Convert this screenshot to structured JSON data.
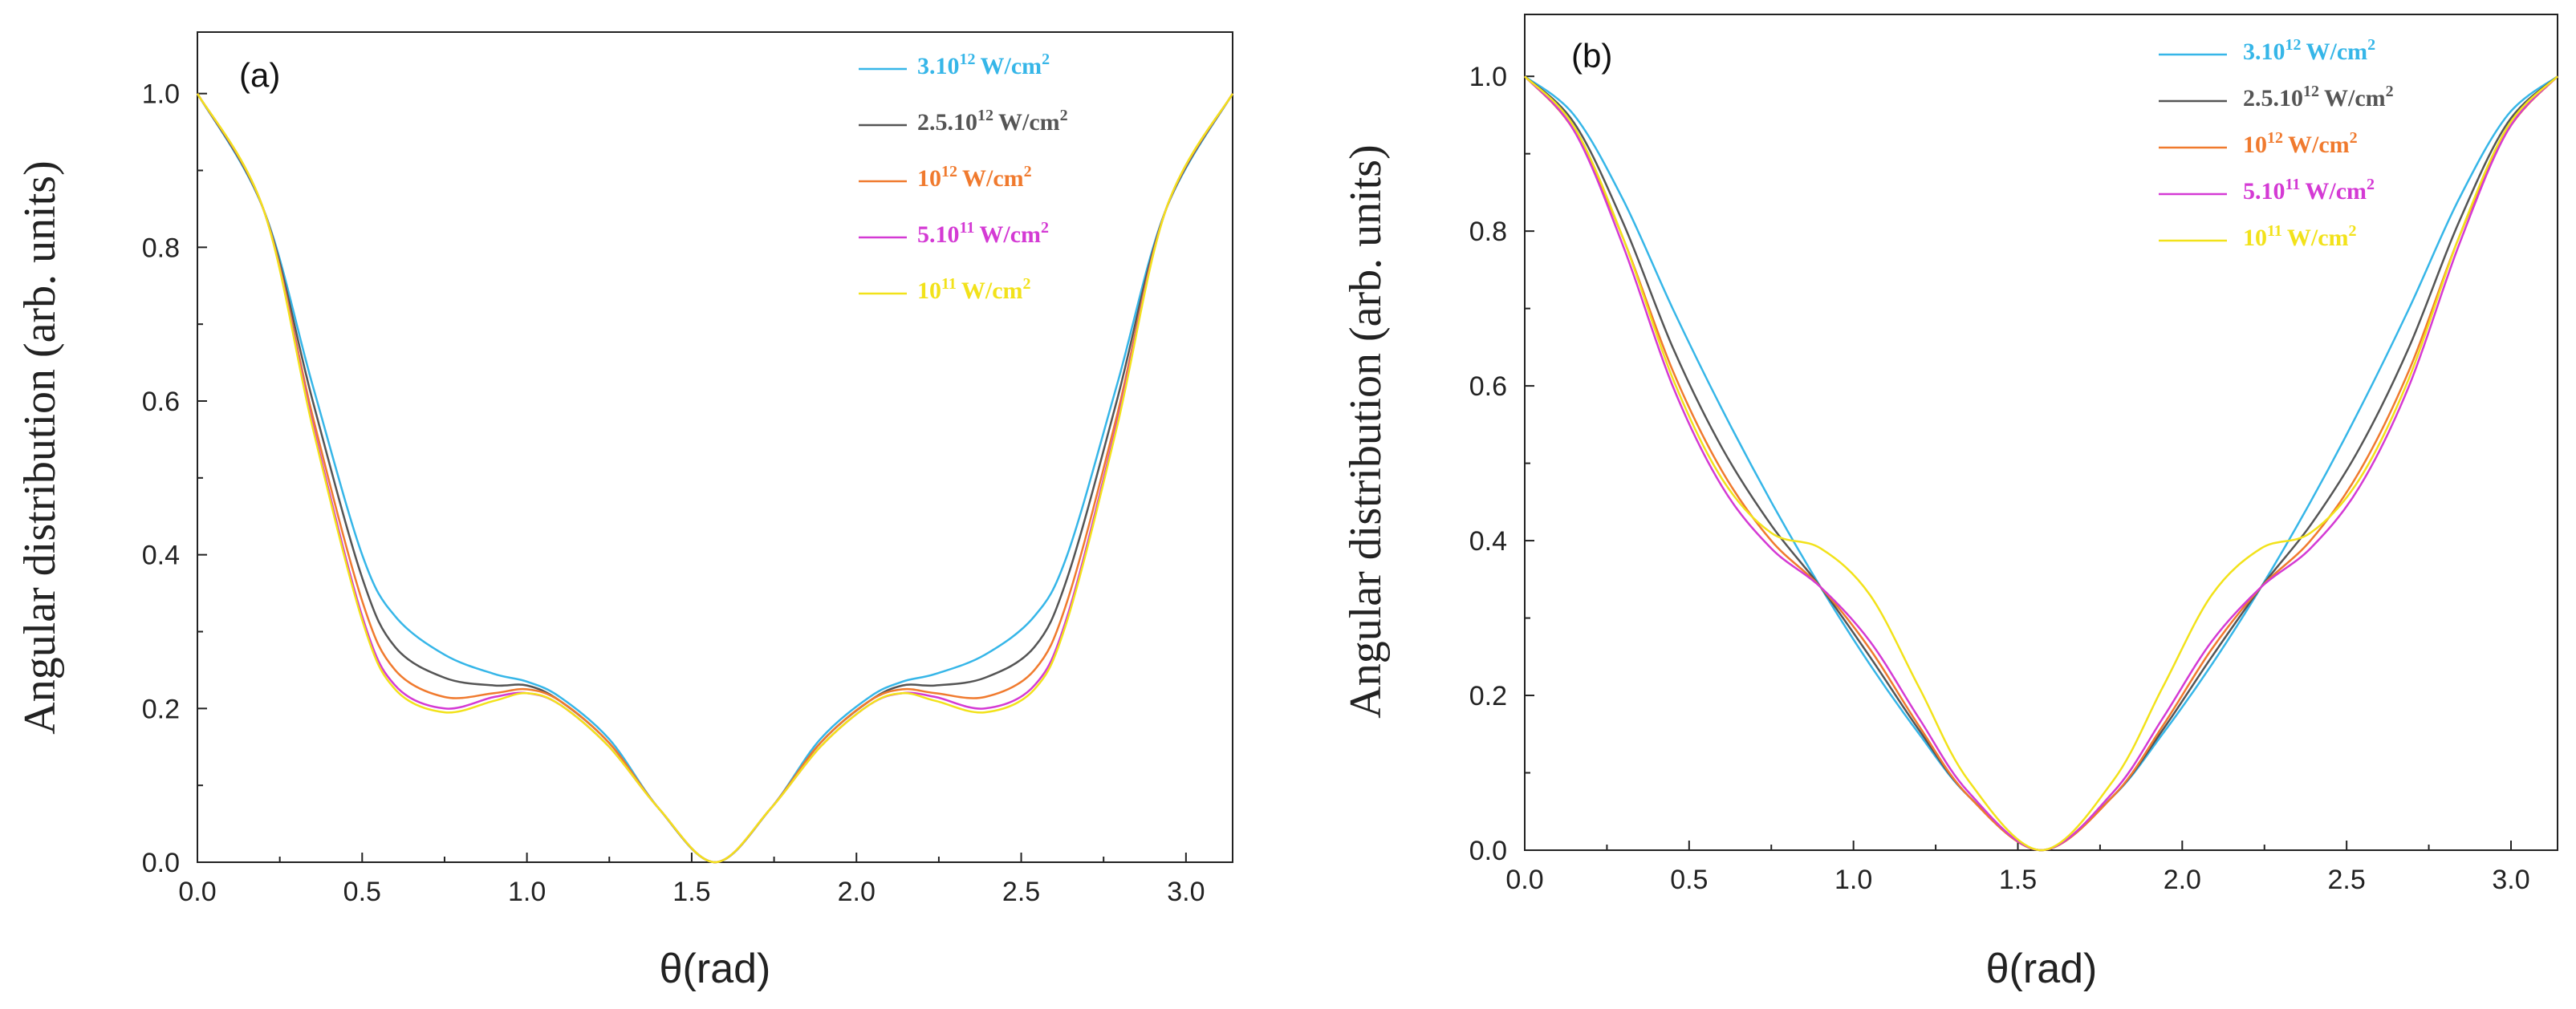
{
  "chart_data": [
    {
      "type": "line",
      "panel_label": "(a)",
      "xlabel": "θ(rad)",
      "ylabel": "Angular distribution (arb. units)",
      "xlim": [
        0.0,
        3.1416
      ],
      "ylim": [
        0.0,
        1.08
      ],
      "xticks": [
        "0.0",
        "0.5",
        "1.0",
        "1.5",
        "2.0",
        "2.5",
        "3.0"
      ],
      "yticks": [
        "0.0",
        "0.2",
        "0.4",
        "0.6",
        "0.8",
        "1.0"
      ],
      "legend_position": "top-right",
      "series": [
        {
          "name": "3.10",
          "sup": "12",
          "unit": "W/cm",
          "unit_sup": "2",
          "color": "#36b6e8",
          "x": [
            0,
            0.2,
            0.35,
            0.5,
            0.6,
            0.75,
            0.9,
            1.0,
            1.1,
            1.25,
            1.4,
            1.5708,
            1.74,
            1.89,
            2.04,
            2.14,
            2.24,
            2.39,
            2.54,
            2.64,
            2.79,
            2.94,
            3.1416
          ],
          "values": [
            1.0,
            0.85,
            0.62,
            0.4,
            0.32,
            0.27,
            0.245,
            0.235,
            0.215,
            0.16,
            0.07,
            0.0,
            0.07,
            0.16,
            0.215,
            0.235,
            0.245,
            0.27,
            0.32,
            0.4,
            0.62,
            0.85,
            1.0
          ]
        },
        {
          "name": "2.5.10",
          "sup": "12",
          "unit": "W/cm",
          "unit_sup": "2",
          "color": "#555555",
          "x": [
            0,
            0.2,
            0.35,
            0.5,
            0.6,
            0.75,
            0.9,
            1.0,
            1.1,
            1.25,
            1.4,
            1.5708,
            1.74,
            1.89,
            2.04,
            2.14,
            2.24,
            2.39,
            2.54,
            2.64,
            2.79,
            2.94,
            3.1416
          ],
          "values": [
            1.0,
            0.85,
            0.6,
            0.37,
            0.28,
            0.24,
            0.23,
            0.23,
            0.21,
            0.155,
            0.07,
            0.0,
            0.07,
            0.155,
            0.21,
            0.23,
            0.23,
            0.24,
            0.28,
            0.37,
            0.6,
            0.85,
            1.0
          ]
        },
        {
          "name": "10",
          "sup": "12",
          "unit": "W/cm",
          "unit_sup": "2",
          "color": "#f07a2e",
          "x": [
            0,
            0.2,
            0.35,
            0.5,
            0.6,
            0.75,
            0.9,
            1.0,
            1.1,
            1.25,
            1.4,
            1.5708,
            1.74,
            1.89,
            2.04,
            2.14,
            2.24,
            2.39,
            2.54,
            2.64,
            2.79,
            2.94,
            3.1416
          ],
          "values": [
            1.0,
            0.85,
            0.58,
            0.34,
            0.25,
            0.215,
            0.22,
            0.225,
            0.21,
            0.155,
            0.07,
            0.0,
            0.07,
            0.155,
            0.21,
            0.225,
            0.22,
            0.215,
            0.25,
            0.34,
            0.58,
            0.85,
            1.0
          ]
        },
        {
          "name": "5.10",
          "sup": "11",
          "unit": "W/cm",
          "unit_sup": "2",
          "color": "#d43ad4",
          "x": [
            0,
            0.2,
            0.35,
            0.5,
            0.6,
            0.75,
            0.9,
            1.0,
            1.1,
            1.25,
            1.4,
            1.5708,
            1.74,
            1.89,
            2.04,
            2.14,
            2.24,
            2.39,
            2.54,
            2.64,
            2.79,
            2.94,
            3.1416
          ],
          "values": [
            1.0,
            0.85,
            0.57,
            0.32,
            0.23,
            0.2,
            0.215,
            0.22,
            0.205,
            0.15,
            0.07,
            0.0,
            0.07,
            0.15,
            0.205,
            0.22,
            0.215,
            0.2,
            0.23,
            0.32,
            0.57,
            0.85,
            1.0
          ]
        },
        {
          "name": "10",
          "sup": "11",
          "unit": "W/cm",
          "unit_sup": "2",
          "color": "#f2e21a",
          "x": [
            0,
            0.2,
            0.35,
            0.5,
            0.6,
            0.75,
            0.9,
            1.0,
            1.1,
            1.25,
            1.4,
            1.5708,
            1.74,
            1.89,
            2.04,
            2.14,
            2.24,
            2.39,
            2.54,
            2.64,
            2.79,
            2.94,
            3.1416
          ],
          "values": [
            1.0,
            0.85,
            0.565,
            0.315,
            0.225,
            0.195,
            0.21,
            0.22,
            0.205,
            0.15,
            0.07,
            0.0,
            0.07,
            0.15,
            0.205,
            0.22,
            0.21,
            0.195,
            0.225,
            0.315,
            0.565,
            0.85,
            1.0
          ]
        }
      ]
    },
    {
      "type": "line",
      "panel_label": "(b)",
      "xlabel": "θ(rad)",
      "ylabel": "Angular distribution (arb. units)",
      "xlim": [
        0.0,
        3.1416
      ],
      "ylim": [
        0.0,
        1.08
      ],
      "xticks": [
        "0.0",
        "0.5",
        "1.0",
        "1.5",
        "2.0",
        "2.5",
        "3.0"
      ],
      "yticks": [
        "0.0",
        "0.2",
        "0.4",
        "0.6",
        "0.8",
        "1.0"
      ],
      "legend_position": "top-right",
      "series": [
        {
          "name": "3.10",
          "sup": "12",
          "unit": "W/cm",
          "unit_sup": "2",
          "color": "#36b6e8",
          "x": [
            0,
            0.15,
            0.3,
            0.45,
            0.6,
            0.75,
            0.9,
            1.05,
            1.2,
            1.35,
            1.5708,
            1.79,
            1.94,
            2.09,
            2.24,
            2.39,
            2.54,
            2.69,
            2.84,
            2.99,
            3.1416
          ],
          "values": [
            1.0,
            0.95,
            0.84,
            0.7,
            0.57,
            0.45,
            0.34,
            0.24,
            0.15,
            0.07,
            0.0,
            0.07,
            0.15,
            0.24,
            0.34,
            0.45,
            0.57,
            0.7,
            0.84,
            0.95,
            1.0
          ]
        },
        {
          "name": "2.5.10",
          "sup": "12",
          "unit": "W/cm",
          "unit_sup": "2",
          "color": "#555555",
          "x": [
            0,
            0.15,
            0.3,
            0.45,
            0.6,
            0.75,
            0.9,
            1.05,
            1.2,
            1.35,
            1.5708,
            1.79,
            1.94,
            2.09,
            2.24,
            2.39,
            2.54,
            2.69,
            2.84,
            2.99,
            3.1416
          ],
          "values": [
            1.0,
            0.94,
            0.81,
            0.65,
            0.52,
            0.42,
            0.34,
            0.25,
            0.155,
            0.07,
            0.0,
            0.07,
            0.155,
            0.25,
            0.34,
            0.42,
            0.52,
            0.65,
            0.81,
            0.94,
            1.0
          ]
        },
        {
          "name": "10",
          "sup": "12",
          "unit": "W/cm",
          "unit_sup": "2",
          "color": "#f07a2e",
          "x": [
            0,
            0.15,
            0.3,
            0.45,
            0.6,
            0.75,
            0.9,
            1.05,
            1.2,
            1.35,
            1.5708,
            1.79,
            1.94,
            2.09,
            2.24,
            2.39,
            2.54,
            2.69,
            2.84,
            2.99,
            3.1416
          ],
          "values": [
            1.0,
            0.93,
            0.79,
            0.62,
            0.49,
            0.4,
            0.34,
            0.26,
            0.16,
            0.07,
            0.0,
            0.07,
            0.16,
            0.26,
            0.34,
            0.4,
            0.49,
            0.62,
            0.79,
            0.93,
            1.0
          ]
        },
        {
          "name": "5.10",
          "sup": "11",
          "unit": "W/cm",
          "unit_sup": "2",
          "color": "#d43ad4",
          "x": [
            0,
            0.15,
            0.3,
            0.45,
            0.6,
            0.75,
            0.9,
            1.05,
            1.2,
            1.35,
            1.5708,
            1.79,
            1.94,
            2.09,
            2.24,
            2.39,
            2.54,
            2.69,
            2.84,
            2.99,
            3.1416
          ],
          "values": [
            1.0,
            0.93,
            0.78,
            0.6,
            0.47,
            0.39,
            0.34,
            0.27,
            0.17,
            0.075,
            0.0,
            0.075,
            0.17,
            0.27,
            0.34,
            0.39,
            0.47,
            0.6,
            0.78,
            0.93,
            1.0
          ]
        },
        {
          "name": "10",
          "sup": "11",
          "unit": "W/cm",
          "unit_sup": "2",
          "color": "#f2e21a",
          "x": [
            0,
            0.15,
            0.3,
            0.45,
            0.6,
            0.75,
            0.9,
            1.05,
            1.2,
            1.35,
            1.5708,
            1.79,
            1.94,
            2.09,
            2.24,
            2.39,
            2.54,
            2.69,
            2.84,
            2.99,
            3.1416
          ],
          "values": [
            1.0,
            0.935,
            0.79,
            0.61,
            0.48,
            0.41,
            0.39,
            0.33,
            0.21,
            0.09,
            0.0,
            0.09,
            0.21,
            0.33,
            0.39,
            0.41,
            0.48,
            0.61,
            0.79,
            0.935,
            1.0
          ]
        }
      ]
    }
  ]
}
